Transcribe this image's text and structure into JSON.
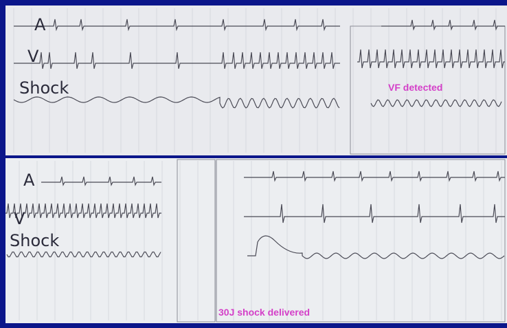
{
  "panels": [
    {
      "labels": [
        "A",
        "V",
        "Shock"
      ]
    },
    {
      "labels": [
        "A",
        "V",
        "Shock"
      ]
    }
  ],
  "annotations": [
    "VF detected",
    "30J shock delivered"
  ]
}
